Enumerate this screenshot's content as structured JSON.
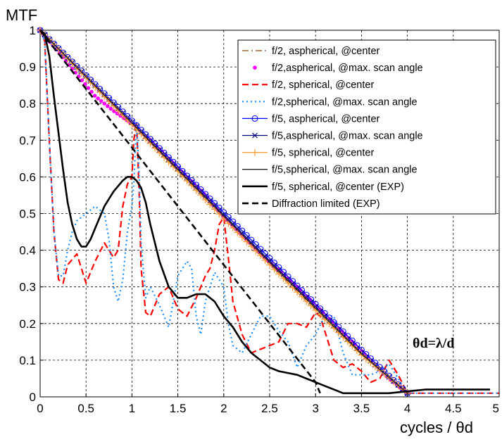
{
  "chart_data": {
    "type": "line",
    "ylabel": "MTF",
    "xlabel": "cycles / θd",
    "annotation": "θd=λ/d",
    "xlim": [
      0,
      5
    ],
    "ylim": [
      0,
      1
    ],
    "x_ticks": [
      0,
      0.5,
      1,
      1.5,
      2,
      2.5,
      3,
      3.5,
      4,
      4.5,
      5
    ],
    "x_tick_labels": [
      "0",
      "0.5",
      "1",
      "1.5",
      "2",
      "2.5",
      "3",
      "3.5",
      "4",
      "4.5",
      "5"
    ],
    "y_ticks": [
      0,
      0.1,
      0.2,
      0.3,
      0.4,
      0.5,
      0.6,
      0.7,
      0.8,
      0.9,
      1
    ],
    "y_tick_labels": [
      "0",
      "0.1",
      "0.2",
      "0.3",
      "0.4",
      "0.5",
      "0.6",
      "0.7",
      "0.8",
      "0.9",
      "1"
    ],
    "grid": true,
    "legend_position": "top-right",
    "series": [
      {
        "name": "f/2, aspherical, @center",
        "color": "#8B4513",
        "dash": "dashdot",
        "marker": "none",
        "x": [
          0,
          0.5,
          1,
          1.5,
          2,
          2.5,
          3,
          3.5,
          4
        ],
        "y": [
          1,
          0.872,
          0.745,
          0.617,
          0.49,
          0.364,
          0.24,
          0.118,
          0.01
        ]
      },
      {
        "name": "f/2,aspherical, @max. scan angle",
        "color": "#ff00ff",
        "dash": "none",
        "marker": "dot",
        "x": [
          0,
          0.2,
          0.4,
          0.6,
          0.8,
          1,
          1.2,
          1.4,
          1.6,
          1.8,
          2,
          2.2,
          2.4,
          2.6,
          2.8,
          3,
          3.2,
          3.4,
          3.6,
          3.8,
          4
        ],
        "y": [
          1,
          0.94,
          0.88,
          0.82,
          0.78,
          0.745,
          0.7,
          0.65,
          0.6,
          0.55,
          0.49,
          0.44,
          0.39,
          0.345,
          0.3,
          0.25,
          0.2,
          0.15,
          0.1,
          0.05,
          0.01
        ]
      },
      {
        "name": "f/2, spherical, @center",
        "color": "#ff0000",
        "dash": "dash",
        "marker": "none",
        "x": [
          0,
          0.05,
          0.1,
          0.15,
          0.2,
          0.25,
          0.3,
          0.4,
          0.5,
          0.6,
          0.7,
          0.8,
          0.85,
          0.9,
          0.95,
          1,
          1.02,
          1.05,
          1.08,
          1.1,
          1.15,
          1.2,
          1.3,
          1.4,
          1.5,
          1.6,
          1.7,
          1.8,
          1.85,
          1.9,
          1.95,
          2,
          2.05,
          2.1,
          2.2,
          2.3,
          2.4,
          2.5,
          2.6,
          2.7,
          2.8,
          2.9,
          3,
          3.05,
          3.1,
          3.2,
          3.3,
          3.4,
          3.5,
          3.6,
          3.7,
          3.8,
          3.9,
          4,
          4.2,
          4.5,
          4.8,
          5
        ],
        "y": [
          1,
          0.97,
          0.7,
          0.45,
          0.32,
          0.31,
          0.36,
          0.39,
          0.31,
          0.37,
          0.42,
          0.38,
          0.4,
          0.52,
          0.58,
          0.6,
          0.7,
          0.75,
          0.55,
          0.35,
          0.23,
          0.22,
          0.28,
          0.3,
          0.24,
          0.22,
          0.27,
          0.33,
          0.35,
          0.4,
          0.47,
          0.49,
          0.38,
          0.26,
          0.17,
          0.12,
          0.13,
          0.14,
          0.15,
          0.2,
          0.2,
          0.19,
          0.23,
          0.22,
          0.18,
          0.1,
          0.08,
          0.09,
          0.07,
          0.04,
          0.05,
          0.1,
          0.06,
          0.01,
          0.01,
          0.01,
          0.01,
          0.01
        ]
      },
      {
        "name": "f/2,spherical, @max. scan angle",
        "color": "#1e90ff",
        "dash": "dot",
        "marker": "none",
        "x": [
          0,
          0.05,
          0.1,
          0.15,
          0.2,
          0.25,
          0.3,
          0.35,
          0.4,
          0.5,
          0.6,
          0.7,
          0.75,
          0.8,
          0.85,
          0.9,
          0.95,
          1,
          1.02,
          1.05,
          1.08,
          1.1,
          1.15,
          1.2,
          1.3,
          1.4,
          1.5,
          1.6,
          1.65,
          1.7,
          1.75,
          1.8,
          1.9,
          2,
          2.05,
          2.1,
          2.2,
          2.3,
          2.4,
          2.5,
          2.6,
          2.7,
          2.8,
          2.9,
          3,
          3.1,
          3.2,
          3.3,
          3.4,
          3.5,
          3.6,
          3.7,
          3.8,
          3.9,
          4,
          4.3,
          4.6,
          5
        ],
        "y": [
          1,
          0.97,
          0.7,
          0.45,
          0.33,
          0.33,
          0.4,
          0.45,
          0.48,
          0.5,
          0.52,
          0.5,
          0.43,
          0.3,
          0.26,
          0.32,
          0.45,
          0.52,
          0.58,
          0.75,
          0.6,
          0.42,
          0.27,
          0.3,
          0.25,
          0.19,
          0.33,
          0.37,
          0.35,
          0.22,
          0.17,
          0.26,
          0.34,
          0.3,
          0.2,
          0.14,
          0.12,
          0.17,
          0.22,
          0.22,
          0.18,
          0.15,
          0.08,
          0.14,
          0.17,
          0.22,
          0.22,
          0.12,
          0.06,
          0.06,
          0.06,
          0.07,
          0.09,
          0.05,
          0.01,
          0.01,
          0.01,
          0.01
        ]
      },
      {
        "name": "f/5, aspherical, @center",
        "color": "#0000ff",
        "dash": "none",
        "marker": "circle",
        "x": [
          0,
          0.5,
          1,
          1.5,
          2,
          2.5,
          3,
          3.5,
          4
        ],
        "y": [
          1,
          0.877,
          0.753,
          0.628,
          0.503,
          0.378,
          0.253,
          0.128,
          0.01
        ]
      },
      {
        "name": "f/5,aspherical, @max. scan angle",
        "color": "#000080",
        "dash": "none",
        "marker": "x",
        "x": [
          0,
          0.5,
          1,
          1.5,
          2,
          2.5,
          3,
          3.5,
          4
        ],
        "y": [
          1,
          0.874,
          0.749,
          0.623,
          0.497,
          0.371,
          0.246,
          0.12,
          0.01
        ]
      },
      {
        "name": "f/5, spherical, @center",
        "color": "#ff9933",
        "dash": "none",
        "marker": "plus",
        "x": [
          0,
          0.5,
          1,
          1.5,
          2,
          2.5,
          3,
          3.5,
          4
        ],
        "y": [
          1,
          0.87,
          0.742,
          0.615,
          0.486,
          0.36,
          0.236,
          0.114,
          0.01
        ]
      },
      {
        "name": "f/5,spherical, @max. scan angle",
        "color": "#222222",
        "dash": "none",
        "marker": "none",
        "x": [
          0,
          0.5,
          1,
          1.5,
          2,
          2.5,
          3,
          3.5,
          4
        ],
        "y": [
          1,
          0.873,
          0.747,
          0.62,
          0.493,
          0.367,
          0.242,
          0.117,
          0.01
        ]
      },
      {
        "name": "f/5, spherical, @center (EXP)",
        "color": "#000000",
        "dash": "none",
        "marker": "none",
        "bold": true,
        "x": [
          0,
          0.05,
          0.1,
          0.15,
          0.2,
          0.25,
          0.3,
          0.35,
          0.4,
          0.45,
          0.5,
          0.55,
          0.6,
          0.7,
          0.8,
          0.9,
          0.95,
          1,
          1.05,
          1.1,
          1.15,
          1.2,
          1.3,
          1.4,
          1.5,
          1.6,
          1.7,
          1.8,
          1.9,
          2,
          2.1,
          2.2,
          2.3,
          2.4,
          2.5,
          2.6,
          2.7,
          2.8,
          2.9,
          3,
          3.1,
          3.2,
          3.3,
          3.35,
          3.5,
          3.8,
          4,
          4.2,
          4.5,
          4.8,
          4.9
        ],
        "y": [
          1,
          0.99,
          0.93,
          0.82,
          0.72,
          0.62,
          0.53,
          0.47,
          0.43,
          0.41,
          0.41,
          0.43,
          0.46,
          0.52,
          0.56,
          0.59,
          0.6,
          0.6,
          0.59,
          0.57,
          0.53,
          0.47,
          0.37,
          0.3,
          0.27,
          0.27,
          0.28,
          0.28,
          0.26,
          0.22,
          0.19,
          0.15,
          0.12,
          0.1,
          0.08,
          0.07,
          0.065,
          0.06,
          0.05,
          0.04,
          0.03,
          0.02,
          0.01,
          0.01,
          0.01,
          0.01,
          0.015,
          0.02,
          0.02,
          0.02,
          0.02
        ]
      },
      {
        "name": "Diffraction limited (EXP)",
        "color": "#000000",
        "dash": "dash",
        "marker": "none",
        "bold": true,
        "x": [
          0,
          0.5,
          1,
          1.5,
          2,
          2.5,
          3,
          3.05
        ],
        "y": [
          1,
          0.84,
          0.68,
          0.52,
          0.36,
          0.2,
          0.04,
          0.01
        ]
      }
    ]
  }
}
